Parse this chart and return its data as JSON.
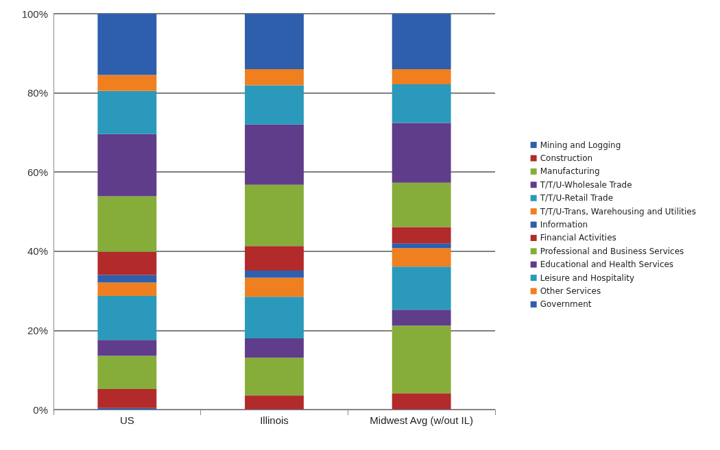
{
  "chart_data": {
    "type": "bar",
    "stacked": true,
    "categories": [
      "US",
      "Illinois",
      "Midwest Avg (w/out IL)"
    ],
    "series": [
      {
        "name": "Mining and Logging",
        "color": "#2e5fad",
        "values": [
          0.4,
          0.1,
          0.1
        ]
      },
      {
        "name": "Construction",
        "color": "#b22a2a",
        "values": [
          4.8,
          3.5,
          4.0
        ]
      },
      {
        "name": "Manufacturing",
        "color": "#86ad3a",
        "values": [
          8.4,
          9.5,
          17.1
        ]
      },
      {
        "name": "T/T/U-Wholesale Trade",
        "color": "#5f3d8a",
        "values": [
          4.0,
          4.9,
          4.0
        ]
      },
      {
        "name": "T/T/U-Retail Trade",
        "color": "#2b99bb",
        "values": [
          11.1,
          10.5,
          10.9
        ]
      },
      {
        "name": "T/T/U-Trans, Warehousing and Utilities",
        "color": "#f07f1f",
        "values": [
          3.4,
          4.8,
          4.7
        ]
      },
      {
        "name": "Information",
        "color": "#2e5fad",
        "values": [
          1.9,
          1.8,
          1.2
        ]
      },
      {
        "name": "Financial Activities",
        "color": "#b22a2a",
        "values": [
          5.9,
          6.2,
          4.1
        ]
      },
      {
        "name": "Professional and Business Services",
        "color": "#86ad3a",
        "values": [
          14.0,
          15.5,
          11.2
        ]
      },
      {
        "name": "Educational and Health Services",
        "color": "#5f3d8a",
        "values": [
          15.7,
          15.2,
          15.1
        ]
      },
      {
        "name": "Leisure and Hospitality",
        "color": "#2b99bb",
        "values": [
          10.9,
          9.9,
          9.8
        ]
      },
      {
        "name": "Other Services",
        "color": "#f07f1f",
        "values": [
          4.0,
          4.1,
          3.8
        ]
      },
      {
        "name": "Government",
        "color": "#2e5fad",
        "values": [
          15.5,
          14.0,
          14.0
        ]
      }
    ],
    "ylim": [
      0,
      100
    ],
    "yticks": [
      {
        "value": 0,
        "label": "0%"
      },
      {
        "value": 20,
        "label": "20%"
      },
      {
        "value": 40,
        "label": "40%"
      },
      {
        "value": 60,
        "label": "60%"
      },
      {
        "value": 80,
        "label": "80%"
      },
      {
        "value": 100,
        "label": "100%"
      }
    ],
    "grid": "y",
    "legend": "right"
  }
}
